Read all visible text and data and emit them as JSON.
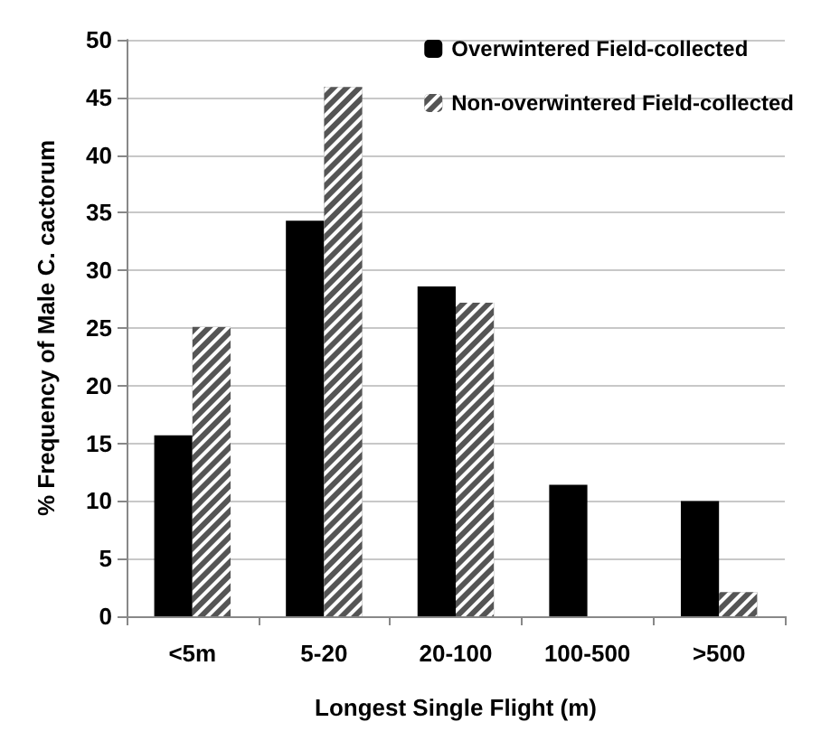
{
  "chart_data": {
    "type": "bar",
    "xlabel": "Longest Single Flight (m)",
    "ylabel": "% Frequency of Male C. cactorum",
    "categories": [
      "<5m",
      "5-20",
      "20-100",
      "100-500",
      ">500"
    ],
    "series": [
      {
        "name": "Overwintered Field-collected",
        "color": "#000000",
        "values": [
          15.7,
          34.3,
          28.6,
          11.4,
          10.0
        ]
      },
      {
        "name": "Non-overwintered Field-collected",
        "color": "#555555",
        "values": [
          25.1,
          45.9,
          27.2,
          0,
          2.1
        ]
      }
    ],
    "ylim": [
      0,
      50
    ],
    "yticks": [
      0,
      5,
      10,
      15,
      20,
      25,
      30,
      35,
      40,
      45,
      50
    ],
    "grid": "y",
    "legend": "top right"
  }
}
